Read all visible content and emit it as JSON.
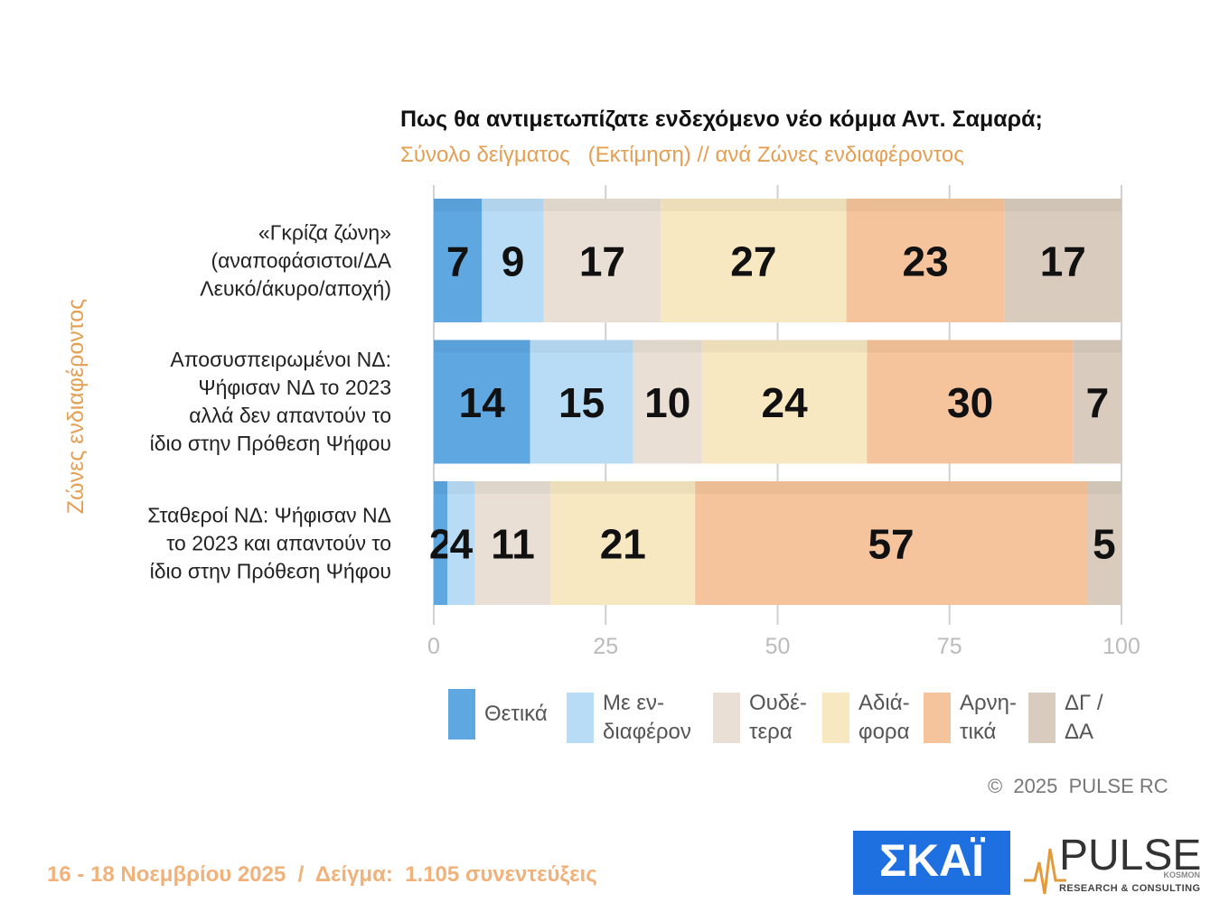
{
  "chart_data": {
    "type": "stacked-bar-horizontal",
    "title": "Πως θα αντιμετωπίζατε ενδεχόμενο νέο κόμμα Αντ. Σαμαρά;",
    "subtitle": "Σύνολο δείγματος   (Εκτίμηση) // ανά Ζώνες ενδιαφέροντος",
    "y_label": "Ζώνες ενδιαφέροντος",
    "categories": [
      "«Γκρίζα ζώνη»\n(αναποφάσιστοι/ΔΑ\nΛευκό/άκυρο/αποχή)",
      "Αποσυσπειρωμένοι ΝΔ:\nΨήφισαν ΝΔ το 2023\nαλλά δεν απαντούν το\nίδιο στην Πρόθεση Ψήφου",
      "Σταθεροί ΝΔ: Ψήφισαν ΝΔ\nτο 2023 και απαντούν το\nίδιο στην Πρόθεση Ψήφου"
    ],
    "series": [
      {
        "name": "Θετικά",
        "color": "#5ea7e1",
        "values": [
          7,
          14,
          2
        ]
      },
      {
        "name": "Με εν-\nδιαφέρον",
        "color": "#b9dcf6",
        "values": [
          9,
          15,
          4
        ]
      },
      {
        "name": "Ουδέ-\nτερα",
        "color": "#e9dfd4",
        "values": [
          17,
          10,
          11
        ]
      },
      {
        "name": "Αδιά-\nφορα",
        "color": "#f7e8c2",
        "values": [
          27,
          24,
          21
        ]
      },
      {
        "name": "Αρνη-\nτικά",
        "color": "#f6c49c",
        "values": [
          23,
          30,
          57
        ]
      },
      {
        "name": "ΔΓ /\nΔΑ",
        "color": "#d9ccbe",
        "values": [
          17,
          7,
          5
        ]
      }
    ],
    "xlim": [
      0,
      100
    ],
    "xticks": [
      0,
      25,
      50,
      75,
      100
    ],
    "grid": true
  },
  "copyright": "©  2025  PULSE RC",
  "footer": "16 - 18 Νοεμβρίου 2025  /  Δείγμα:  1.105 συνεντεύξεις",
  "logos": {
    "skai": "ΣΚΑΪ",
    "pulse": "PULSE",
    "pulse_sub": "KOSMON",
    "pulse_tagline": "RESEARCH & CONSULTING"
  }
}
